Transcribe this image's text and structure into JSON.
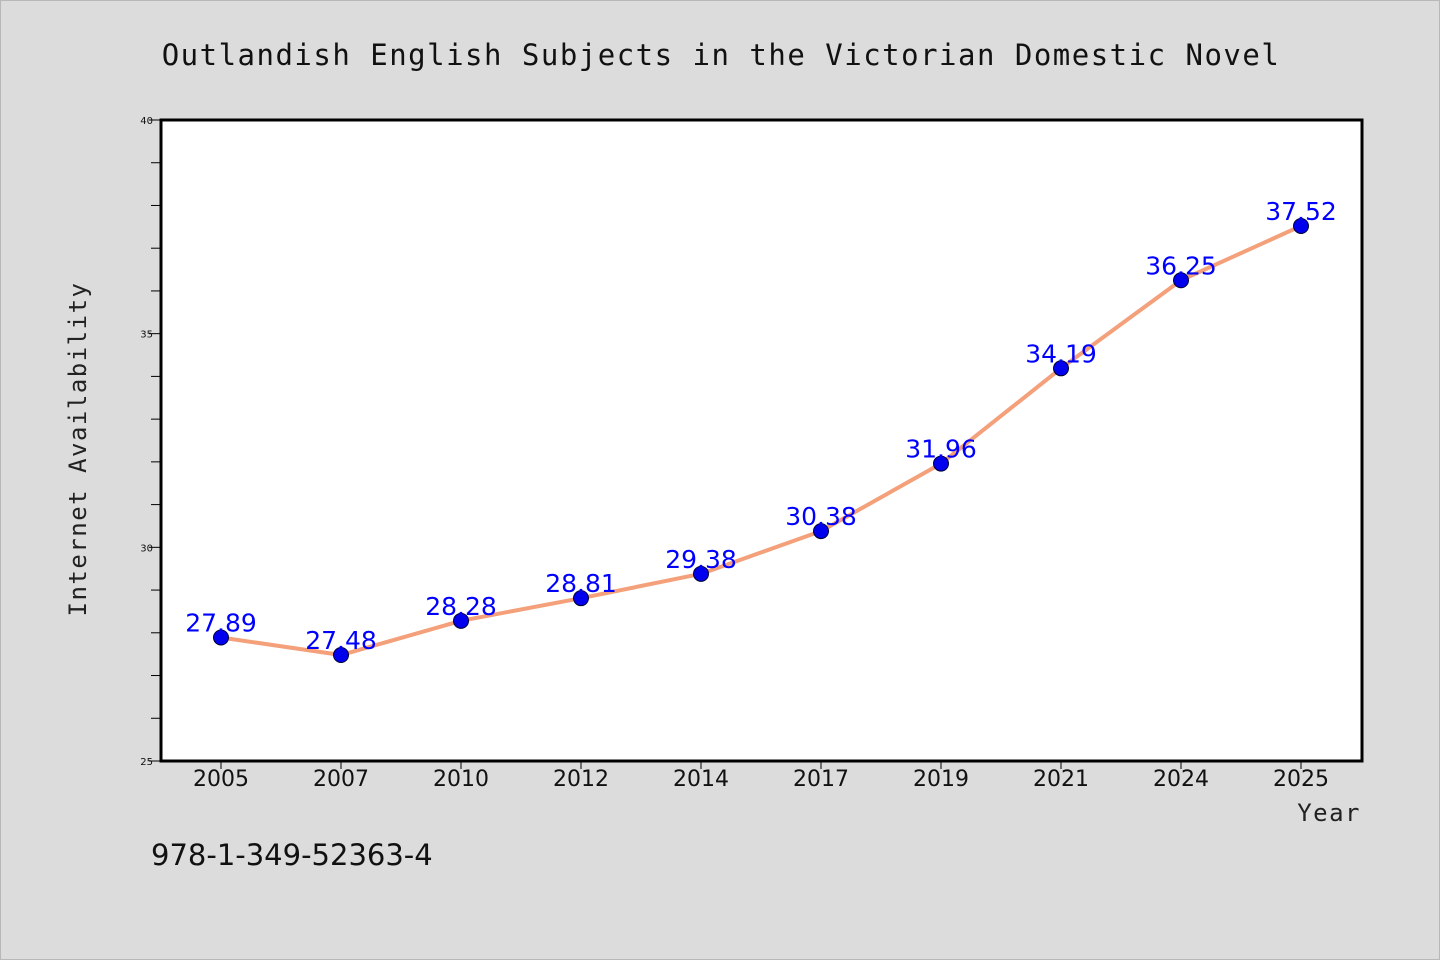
{
  "chart_data": {
    "type": "line",
    "title": "Outlandish English Subjects in the Victorian Domestic Novel",
    "xlabel": "Year",
    "ylabel": "Internet Availability",
    "categories": [
      "2005",
      "2007",
      "2010",
      "2012",
      "2014",
      "2017",
      "2019",
      "2021",
      "2024",
      "2025"
    ],
    "series": [
      {
        "values": [
          27.89,
          27.48,
          28.28,
          28.81,
          29.38,
          30.38,
          31.96,
          34.19,
          36.25,
          37.52
        ],
        "labels": [
          "27.89",
          "27.48",
          "28.28",
          "28.81",
          "29.38",
          "30.38",
          "31.96",
          "34.19",
          "36.25",
          "37.52"
        ]
      }
    ],
    "ylim": [
      25,
      40
    ],
    "yticks": [
      "25",
      "30",
      "35",
      "40"
    ],
    "grid": false,
    "legend": "none",
    "colors": {
      "line": "#f4a07a",
      "marker": "#0000ee",
      "data_label": "#0000ff",
      "background": "#dcdcdc",
      "plot_area": "#ffffff"
    }
  },
  "annotation": "978-1-349-52363-4"
}
